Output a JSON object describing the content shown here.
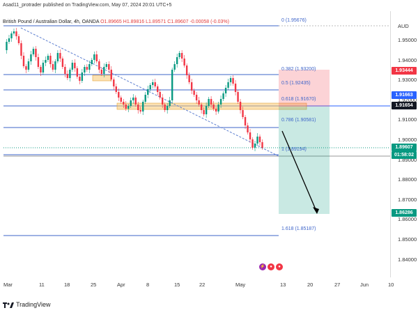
{
  "header": {
    "published": "Asad11_protrader published on TradingView.com, May 07, 2024 20:01 UTC+5"
  },
  "symbol": {
    "name": "British Pound / Australian Dollar, 4h, OANDA",
    "ohlc": "O1.89665 H1.89816 L1.89571 C1.89607 -0.00058 (-0.03%)"
  },
  "currency": "AUD",
  "price_ticks": [
    "1.95000",
    "1.94000",
    "1.93000",
    "1.92000",
    "1.91000",
    "1.90000",
    "1.89000",
    "1.88000",
    "1.87000",
    "1.86000",
    "1.85000",
    "1.84000"
  ],
  "date_ticks": [
    "Mar",
    "11",
    "18",
    "25",
    "Apr",
    "8",
    "15",
    "22",
    "May",
    "13",
    "20",
    "27",
    "Jun",
    "10"
  ],
  "fib_levels": [
    {
      "label": "0 (1.95676)"
    },
    {
      "label": "0.382 (1.93200)"
    },
    {
      "label": "0.5 (1.92435)"
    },
    {
      "label": "0.618 (1.91670)"
    },
    {
      "label": "0.786 (1.90581)"
    },
    {
      "label": "1 (1.89194)"
    },
    {
      "label": "1.618 (1.85187)"
    }
  ],
  "price_labels": {
    "stop": {
      "value": "1.93444",
      "color": "#f23645"
    },
    "entry1": {
      "value": "1.91663",
      "color": "#2962ff"
    },
    "entry2": {
      "value": "1.91654",
      "color": "#131722"
    },
    "current": {
      "value": "1.89607",
      "color": "#089981"
    },
    "countdown": {
      "value": "01:58:02",
      "color": "#089981"
    },
    "target": {
      "value": "1.86286",
      "color": "#089981"
    }
  },
  "footer": {
    "brand": "TradingView"
  },
  "colors": {
    "up": "#089981",
    "down": "#f23645",
    "fib": "#3d64c9"
  }
}
